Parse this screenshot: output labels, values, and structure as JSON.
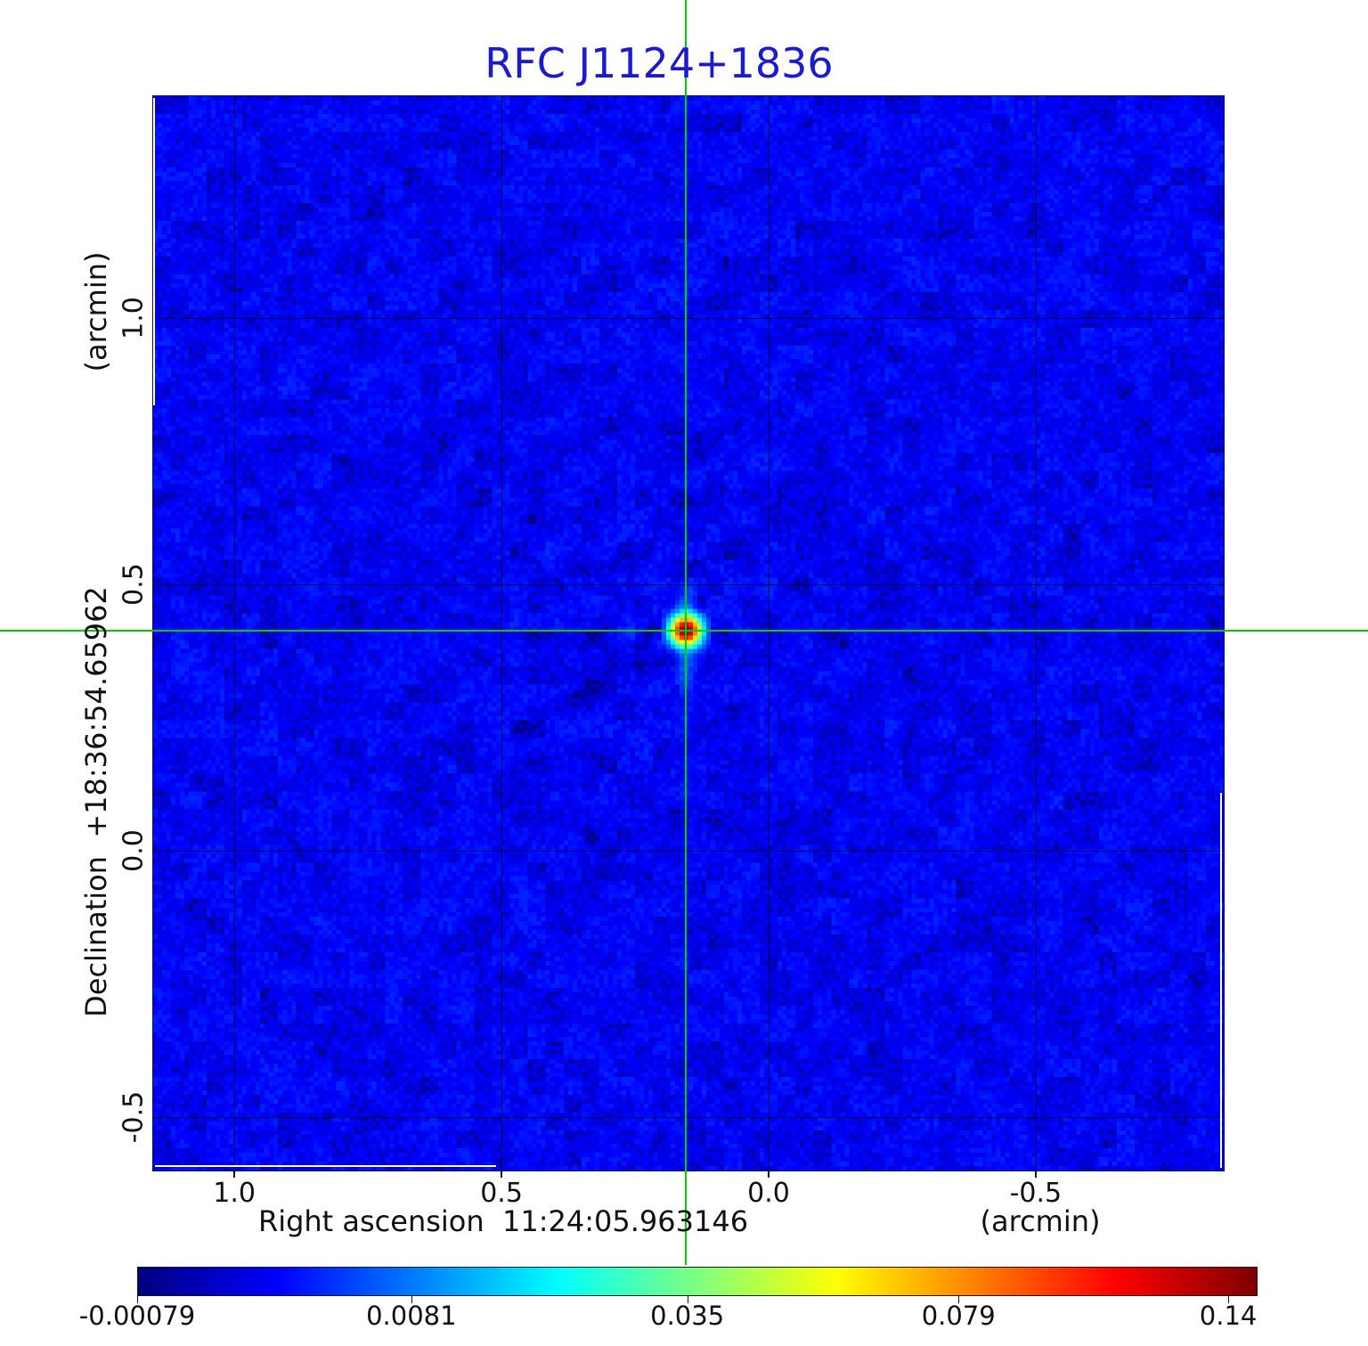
{
  "title": {
    "text": "RFC J1124+1836"
  },
  "colors": {
    "title": "#1b1bcd",
    "crosshair": "#00cf00",
    "gridline": "rgba(0,0,0,0.72)",
    "frame": "#141414",
    "page_background": "#ffffff"
  },
  "axes": {
    "x": {
      "label": "Right ascension  11:24:05.963146",
      "unit": "(arcmin)",
      "ticks": [
        {
          "label": "1.0",
          "value": 1.0
        },
        {
          "label": "0.5",
          "value": 0.5
        },
        {
          "label": "0.0",
          "value": 0.0
        },
        {
          "label": "-0.5",
          "value": -0.5
        }
      ]
    },
    "y": {
      "label": "Declination  +18:36:54.65962",
      "unit": "(arcmin)",
      "ticks": [
        {
          "label": "1.0",
          "value": 1.0
        },
        {
          "label": "0.5",
          "value": 0.5
        },
        {
          "label": "0.0",
          "value": 0.0
        },
        {
          "label": "-0.5",
          "value": -0.5
        }
      ]
    }
  },
  "chart_data": {
    "type": "heatmap",
    "title": "RFC J1124+1836",
    "xlabel": "Right ascension 11:24:05.963146 (arcmin)",
    "ylabel": "Declination +18:36:54.65962 (arcmin)",
    "x_range_arcmin": [
      1.152,
      -0.852
    ],
    "y_range_arcmin": [
      -0.601,
      1.416
    ],
    "x_ticks": [
      1.0,
      0.5,
      0.0,
      -0.5
    ],
    "y_ticks": [
      1.0,
      0.5,
      0.0,
      -0.5
    ],
    "grid": true,
    "colormap": "jet",
    "scale": "sqrt",
    "vmin": -0.00079,
    "vmax": 0.1472,
    "colorbar": {
      "orientation": "horizontal",
      "ticks": [
        -0.00079,
        0.0081,
        0.035,
        0.079,
        0.14
      ],
      "labels": [
        "-0.00079",
        "0.0081",
        "0.035",
        "0.079",
        "0.14"
      ]
    },
    "source": {
      "ra_arcmin": 0.155,
      "dec_arcmin": 0.413,
      "peak_value": 0.147,
      "sigma_arcmin": 0.0167
    },
    "crosshair": {
      "ra_arcmin": 0.155,
      "dec_arcmin": 0.413
    },
    "background": {
      "mean_level": 0.0012,
      "noise_rms": 0.0009
    }
  }
}
